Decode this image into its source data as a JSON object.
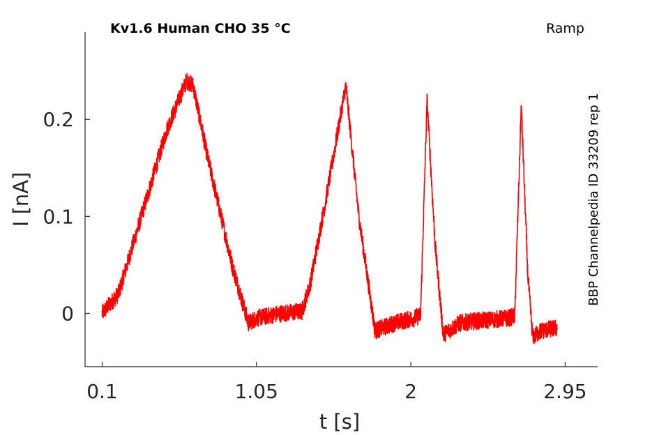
{
  "chart_data": {
    "type": "line",
    "title": "Kv1.6  Human  CHO  35 °C",
    "subtitle": "Ramp",
    "side_annotation": "BBP Channelpedia ID 33209 rep 1",
    "xlabel": "t [s]",
    "ylabel": "I [nA]",
    "xlim": [
      -0.005,
      3.15
    ],
    "ylim": [
      -0.055,
      0.29
    ],
    "x_ticks": [
      0.1,
      1.05,
      2,
      2.95
    ],
    "x_tick_labels": [
      "0.1",
      "1.05",
      "2",
      "2.95"
    ],
    "y_ticks": [
      0,
      0.1,
      0.2
    ],
    "y_tick_labels": [
      "0",
      "0.1",
      "0.2"
    ],
    "grid": false,
    "legend": "none",
    "series": [
      {
        "color": "#ff0000",
        "noise_amplitude": 0.009,
        "x": [
          0.1,
          0.2,
          0.35,
          0.5,
          0.62,
          0.66,
          0.75,
          0.9,
          1.0,
          1.05,
          1.2,
          1.33,
          1.38,
          1.48,
          1.6,
          1.68,
          1.78,
          1.9,
          2.02,
          2.06,
          2.1,
          2.15,
          2.2,
          2.3,
          2.4,
          2.6,
          2.64,
          2.68,
          2.72,
          2.75,
          2.8,
          2.9
        ],
        "y": [
          0.0,
          0.02,
          0.105,
          0.19,
          0.24,
          0.235,
          0.16,
          0.05,
          -0.01,
          -0.005,
          0.0,
          0.002,
          0.03,
          0.12,
          0.235,
          0.1,
          -0.018,
          -0.01,
          -0.005,
          -0.002,
          0.22,
          0.07,
          -0.022,
          -0.01,
          -0.008,
          -0.005,
          -0.003,
          0.215,
          0.04,
          -0.025,
          -0.018,
          -0.015
        ]
      }
    ]
  }
}
